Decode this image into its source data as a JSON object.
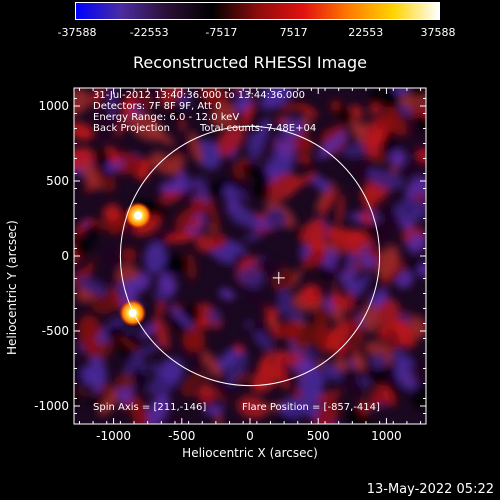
{
  "colorbar": {
    "ticks": [
      "-37588",
      "-22553",
      "-7517",
      "7517",
      "22553",
      "37588"
    ],
    "stops": [
      "#0000ff",
      "#4b2ca0",
      "#2a0f35",
      "#000000",
      "#8c0c0c",
      "#e11010",
      "#ff7a00",
      "#ffd400",
      "#ffffff"
    ]
  },
  "chart_data": {
    "type": "heatmap",
    "title": "Reconstructed RHESSI Image",
    "xlabel": "Heliocentric X (arcsec)",
    "ylabel": "Heliocentric Y (arcsec)",
    "xlim": [
      -1290,
      1290
    ],
    "ylim": [
      -1120,
      1120
    ],
    "xticks": [
      -1000,
      -500,
      0,
      500,
      1000
    ],
    "yticks": [
      -1000,
      -500,
      0,
      500,
      1000
    ],
    "xtick_labels": [
      "-1000",
      "-500",
      "0",
      "500",
      "1000"
    ],
    "ytick_labels": [
      "-1000",
      "-500",
      "0",
      "500",
      "1000"
    ],
    "solar_limb_radius": 950,
    "spin_axis": [
      211,
      -146
    ],
    "flare_position": [
      -857,
      -414
    ],
    "bright_sources": [
      {
        "x": -820,
        "y": 270,
        "level": "max"
      },
      {
        "x": -860,
        "y": -380,
        "level": "max"
      }
    ],
    "annotations": {
      "time_range": "31-Jul-2012 13:40:36.000 to 13:44:36.000",
      "detectors": "Detectors: 7F 8F 9F, Att 0",
      "energy_range": "Energy Range: 6.0 - 12.0 keV",
      "method": "Back Projection",
      "total_counts": "Total counts: 7.48E+04",
      "spin_axis_label": "Spin Axis = [211,-146]",
      "flare_position_label": "Flare Position = [-857,-414]"
    }
  },
  "footer": {
    "timestamp": "13-May-2022 05:22"
  }
}
